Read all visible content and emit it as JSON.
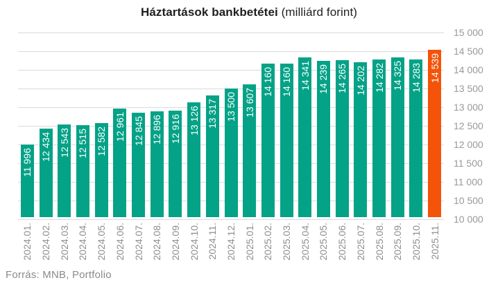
{
  "chart_data": {
    "type": "bar",
    "title": "Háztartások bankbetétei (milliárd forint)",
    "title_bold": "Háztartások bankbetétei",
    "title_unit": " (milliárd forint)",
    "categories": [
      "2024.01.",
      "2024.02.",
      "2024.03.",
      "2024.04.",
      "2024.05.",
      "2024.06.",
      "2024.07.",
      "2024.08.",
      "2024.09.",
      "2024.10.",
      "2024.11.",
      "2024.12.",
      "2025.01.",
      "2025.02.",
      "2025.03.",
      "2025.04.",
      "2025.05.",
      "2025.06.",
      "2025.07.",
      "2025.08.",
      "2025.09.",
      "2025.10.",
      "2025.11."
    ],
    "values": [
      11996,
      12434,
      12543,
      12515,
      12582,
      12961,
      12845,
      12896,
      12916,
      13126,
      13317,
      13500,
      13607,
      14160,
      14160,
      14341,
      14239,
      14265,
      14202,
      14282,
      14325,
      14283,
      14539
    ],
    "value_labels": [
      "11 996",
      "12 434",
      "12 543",
      "12 515",
      "12 582",
      "12 961",
      "12 845",
      "12 896",
      "12 916",
      "13 126",
      "13 317",
      "13 500",
      "13 607",
      "14 160",
      "14 160",
      "14 341",
      "14 239",
      "14 265",
      "14 202",
      "14 282",
      "14 325",
      "14 283",
      "14 539"
    ],
    "xlabel": "",
    "ylabel": "",
    "ylim": [
      10000,
      15000
    ],
    "ytick_step": 500,
    "ytick_labels": [
      "15 000",
      "14 500",
      "14 000",
      "13 500",
      "13 000",
      "12 500",
      "12 000",
      "11 500",
      "11 000",
      "10 500",
      "10 000"
    ],
    "grid": true,
    "legend": false,
    "y_axis_position": "right",
    "bar_color": "#04a287",
    "highlight_color": "#f4530a",
    "highlight_index": 22,
    "value_label_color": "#ffffff"
  },
  "footer": {
    "source": "Forrás: MNB, Portfolio"
  }
}
